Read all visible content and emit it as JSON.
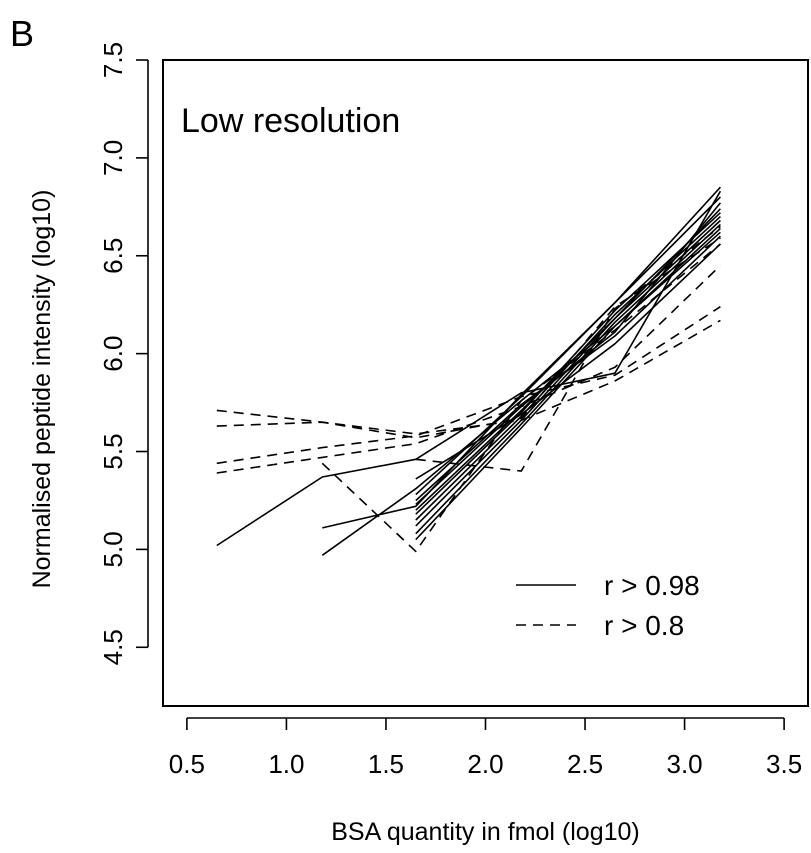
{
  "panel_label": "B",
  "chart_data": {
    "type": "line",
    "title": "Low resolution",
    "xlabel": "BSA quantity in fmol (log10)",
    "ylabel": "Normalised peptide intensity (log10)",
    "xlim": [
      0.38,
      3.62
    ],
    "ylim": [
      4.2,
      7.5
    ],
    "xticks": [
      0.5,
      1.0,
      1.5,
      2.0,
      2.5,
      3.0,
      3.5
    ],
    "xtick_labels": [
      "0.5",
      "1.0",
      "1.5",
      "2.0",
      "2.5",
      "3.0",
      "3.5"
    ],
    "yticks": [
      4.5,
      5.0,
      5.5,
      6.0,
      6.5,
      7.0,
      7.5
    ],
    "ytick_labels": [
      "4.5",
      "5.0",
      "5.5",
      "6.0",
      "6.5",
      "7.0",
      "7.5"
    ],
    "legend": {
      "position": "bottom-right",
      "entries": [
        {
          "label": "r > 0.98",
          "linestyle": "solid"
        },
        {
          "label": "r > 0.8",
          "linestyle": "dashed"
        }
      ]
    },
    "series": [
      {
        "linestyle": "solid",
        "x": [
          0.65,
          1.18,
          1.65,
          2.18,
          2.65,
          3.18
        ],
        "y": [
          5.02,
          5.37,
          5.46,
          5.8,
          5.9,
          6.83
        ]
      },
      {
        "linestyle": "solid",
        "x": [
          1.18,
          1.65,
          2.18,
          2.65,
          3.18
        ],
        "y": [
          5.11,
          5.22,
          5.79,
          6.26,
          6.85
        ]
      },
      {
        "linestyle": "solid",
        "x": [
          1.18,
          1.65,
          2.18,
          2.65,
          3.18
        ],
        "y": [
          4.97,
          5.31,
          5.76,
          6.14,
          6.62
        ]
      },
      {
        "linestyle": "solid",
        "x": [
          1.65,
          2.18,
          2.65,
          3.18
        ],
        "y": [
          5.05,
          5.62,
          6.14,
          6.64
        ]
      },
      {
        "linestyle": "solid",
        "x": [
          1.65,
          2.18,
          2.65,
          3.18
        ],
        "y": [
          5.08,
          5.64,
          6.16,
          6.66
        ]
      },
      {
        "linestyle": "solid",
        "x": [
          1.65,
          2.18,
          2.65,
          3.18
        ],
        "y": [
          5.12,
          5.66,
          6.18,
          6.68
        ]
      },
      {
        "linestyle": "solid",
        "x": [
          1.65,
          2.18,
          2.65,
          3.18
        ],
        "y": [
          5.15,
          5.68,
          6.2,
          6.7
        ]
      },
      {
        "linestyle": "solid",
        "x": [
          1.65,
          2.18,
          2.65,
          3.18
        ],
        "y": [
          5.18,
          5.7,
          6.22,
          6.72
        ]
      },
      {
        "linestyle": "solid",
        "x": [
          1.65,
          2.18,
          2.65,
          3.18
        ],
        "y": [
          5.2,
          5.71,
          6.18,
          6.74
        ]
      },
      {
        "linestyle": "solid",
        "x": [
          1.65,
          2.18,
          2.65,
          3.18
        ],
        "y": [
          5.23,
          5.73,
          6.11,
          6.77
        ]
      },
      {
        "linestyle": "solid",
        "x": [
          1.65,
          2.18,
          2.65,
          3.18
        ],
        "y": [
          5.25,
          5.74,
          6.09,
          6.6
        ]
      },
      {
        "linestyle": "solid",
        "x": [
          1.65,
          2.18,
          2.65,
          3.18
        ],
        "y": [
          5.28,
          5.78,
          6.26,
          6.8
        ]
      },
      {
        "linestyle": "solid",
        "x": [
          1.65,
          2.18,
          2.65,
          3.18
        ],
        "y": [
          5.36,
          5.69,
          6.05,
          6.56
        ]
      },
      {
        "linestyle": "dashed",
        "x": [
          0.65,
          1.18,
          1.65,
          2.18,
          2.65,
          3.18
        ],
        "y": [
          5.71,
          5.65,
          5.59,
          5.66,
          5.86,
          6.17
        ]
      },
      {
        "linestyle": "dashed",
        "x": [
          0.65,
          1.18,
          1.65,
          2.18,
          2.65,
          3.18
        ],
        "y": [
          5.63,
          5.65,
          5.57,
          5.67,
          6.24,
          6.59
        ]
      },
      {
        "linestyle": "dashed",
        "x": [
          0.65,
          1.18,
          1.65,
          2.18,
          2.65,
          3.18
        ],
        "y": [
          5.44,
          5.52,
          5.58,
          5.78,
          5.89,
          6.24
        ]
      },
      {
        "linestyle": "dashed",
        "x": [
          0.65,
          1.18,
          1.65,
          2.18,
          2.65,
          3.18
        ],
        "y": [
          5.39,
          5.47,
          5.54,
          5.73,
          5.93,
          6.45
        ]
      },
      {
        "linestyle": "dashed",
        "x": [
          1.18,
          1.65,
          2.18,
          2.65,
          3.18
        ],
        "y": [
          5.44,
          4.99,
          5.76,
          6.12,
          6.56
        ]
      },
      {
        "linestyle": "dashed",
        "x": [
          1.65,
          2.18,
          2.65,
          3.18
        ],
        "y": [
          5.46,
          5.4,
          6.23,
          6.65
        ]
      }
    ]
  }
}
